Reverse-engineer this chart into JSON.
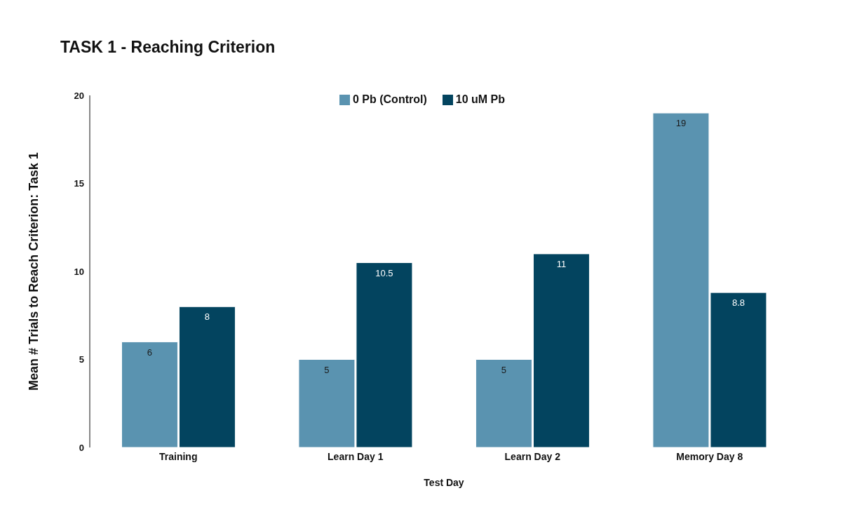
{
  "chart_data": {
    "type": "bar",
    "title": "TASK 1 - Reaching Criterion",
    "xlabel": "Test Day",
    "ylabel": "Mean # Trials to Reach Criterion: Task 1",
    "categories": [
      "Training",
      "Learn Day 1",
      "Learn Day 2",
      "Memory Day 8"
    ],
    "series": [
      {
        "name": "0 Pb (Control)",
        "color": "#5a93b0",
        "values": [
          6,
          5,
          5,
          19
        ]
      },
      {
        "name": "10 uM Pb",
        "color": "#03445f",
        "values": [
          8,
          10.5,
          11,
          8.8
        ]
      }
    ],
    "ylim": [
      0,
      20
    ],
    "yticks": [
      0,
      5,
      10,
      15,
      20
    ],
    "grid": false,
    "legend": "top",
    "data_labels": true
  }
}
